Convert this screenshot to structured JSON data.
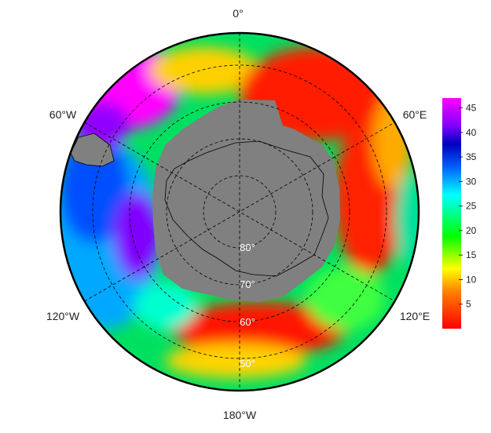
{
  "map": {
    "projection": "south-polar-stereographic",
    "lon_labels": {
      "top": "0°",
      "upper_right": "60°E",
      "lower_right": "120°E",
      "bottom": "180°W",
      "lower_left": "120°W",
      "upper_left": "60°W"
    },
    "lat_labels": [
      "80°",
      "70°",
      "60°",
      "50°"
    ],
    "land_color": "#808080",
    "outer_border_color": "#000000"
  },
  "colorbar": {
    "ticks": [
      "5",
      "10",
      "15",
      "20",
      "25",
      "30",
      "35",
      "40",
      "45"
    ],
    "min": 0,
    "max": 47,
    "stops": [
      "#ff0000",
      "#ff8000",
      "#ffff00",
      "#00ff00",
      "#00ffff",
      "#0060ff",
      "#0000c0",
      "#8000ff",
      "#ff00ff"
    ]
  }
}
